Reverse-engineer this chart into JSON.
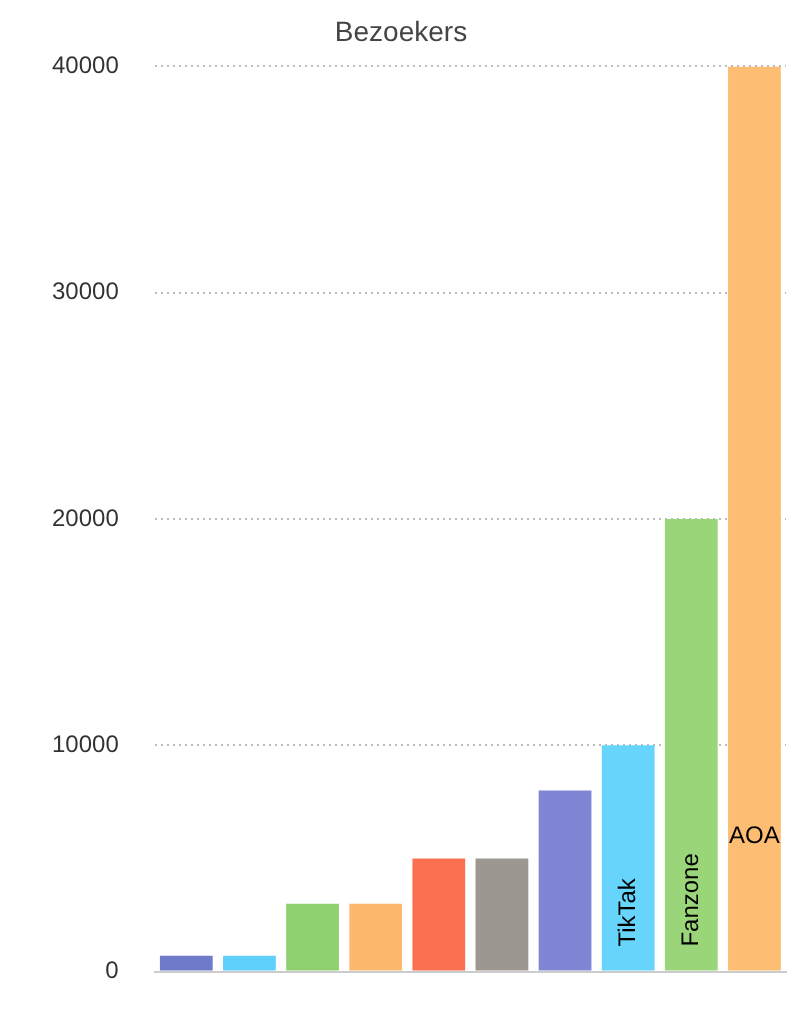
{
  "chart_data": {
    "type": "bar",
    "title": "Bezoekers",
    "categories": [
      null,
      null,
      null,
      null,
      null,
      null,
      null,
      "TikTak",
      "Fanzone",
      "AOA"
    ],
    "values": [
      700,
      700,
      3000,
      3000,
      5000,
      5000,
      8000,
      10000,
      20000,
      40000
    ],
    "colors": [
      "#6f7acb",
      "#5fd0fb",
      "#8fd16f",
      "#fdb96b",
      "#fc7052",
      "#9c9890",
      "#8086d3",
      "#66d4fb",
      "#9ad57a",
      "#fdbd72"
    ],
    "ylim": [
      0,
      40000
    ],
    "yticks": [
      0,
      10000,
      20000,
      30000,
      40000
    ],
    "grid": "y",
    "legend": false
  }
}
